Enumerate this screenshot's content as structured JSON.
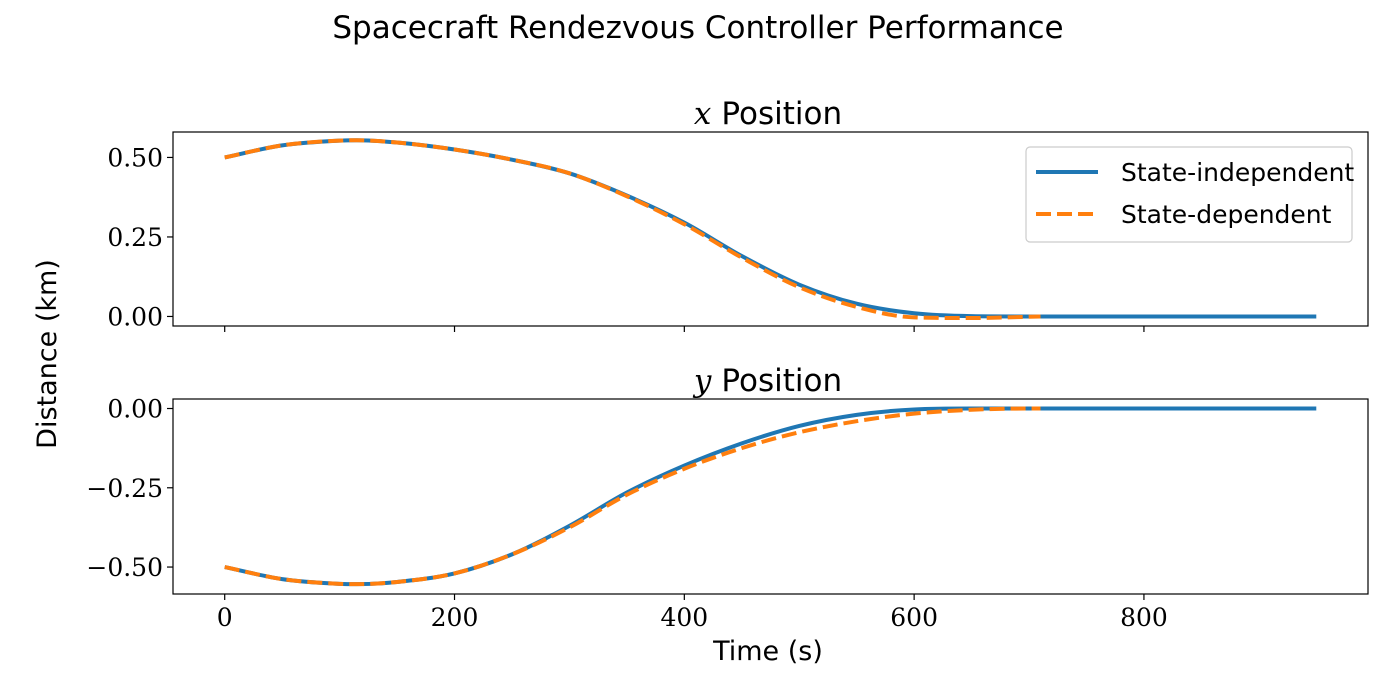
{
  "figure": {
    "suptitle": "Spacecraft Rendezvous Controller Performance",
    "ylabel": "Distance (km)",
    "xlabel": "Time (s)"
  },
  "legend": {
    "placement": "upper-right of top panel",
    "entries": [
      "State-independent",
      "State-dependent"
    ]
  },
  "colors": {
    "state_independent": "#1f77b4",
    "state_dependent": "#ff7f0e"
  },
  "chart_data": [
    {
      "type": "line",
      "title_var": "x",
      "title_text": "Position",
      "xlim": [
        -45,
        995
      ],
      "ylim": [
        -0.03,
        0.58
      ],
      "xticks": [
        0,
        200,
        400,
        600,
        800
      ],
      "yticks": [
        0.0,
        0.25,
        0.5
      ],
      "ytick_labels": [
        "0.00",
        "0.25",
        "0.50"
      ],
      "x_tick_labels_visible": false,
      "grid": false,
      "series": [
        {
          "name": "State-independent",
          "style": "solid",
          "x": [
            0,
            50,
            100,
            115,
            150,
            200,
            250,
            300,
            350,
            400,
            450,
            500,
            550,
            600,
            650,
            700,
            950
          ],
          "y": [
            0.5,
            0.538,
            0.553,
            0.554,
            0.547,
            0.525,
            0.493,
            0.45,
            0.38,
            0.295,
            0.19,
            0.1,
            0.04,
            0.01,
            0.001,
            0.0,
            0.0
          ]
        },
        {
          "name": "State-dependent",
          "style": "dashed",
          "x": [
            0,
            50,
            100,
            115,
            150,
            200,
            250,
            300,
            350,
            400,
            450,
            500,
            550,
            600,
            650,
            700,
            710
          ],
          "y": [
            0.5,
            0.538,
            0.553,
            0.554,
            0.547,
            0.525,
            0.493,
            0.45,
            0.378,
            0.29,
            0.185,
            0.092,
            0.03,
            -0.003,
            -0.005,
            -0.001,
            0.0
          ]
        }
      ]
    },
    {
      "type": "line",
      "title_var": "y",
      "title_text": "Position",
      "xlim": [
        -45,
        995
      ],
      "ylim": [
        -0.585,
        0.03
      ],
      "xticks": [
        0,
        200,
        400,
        600,
        800
      ],
      "xtick_labels": [
        "0",
        "200",
        "400",
        "600",
        "800"
      ],
      "yticks": [
        -0.5,
        -0.25,
        0.0
      ],
      "ytick_labels": [
        "−0.50",
        "−0.25",
        "0.00"
      ],
      "grid": false,
      "series": [
        {
          "name": "State-independent",
          "style": "solid",
          "x": [
            0,
            50,
            100,
            115,
            150,
            200,
            250,
            300,
            350,
            400,
            450,
            500,
            550,
            600,
            650,
            700,
            950
          ],
          "y": [
            -0.5,
            -0.538,
            -0.553,
            -0.554,
            -0.547,
            -0.52,
            -0.46,
            -0.37,
            -0.265,
            -0.18,
            -0.11,
            -0.055,
            -0.02,
            -0.003,
            0.0,
            0.0,
            0.0
          ]
        },
        {
          "name": "State-dependent",
          "style": "dashed",
          "x": [
            0,
            50,
            100,
            115,
            150,
            200,
            250,
            300,
            350,
            400,
            450,
            500,
            550,
            600,
            650,
            700,
            710
          ],
          "y": [
            -0.5,
            -0.538,
            -0.553,
            -0.554,
            -0.547,
            -0.52,
            -0.46,
            -0.375,
            -0.272,
            -0.19,
            -0.125,
            -0.075,
            -0.04,
            -0.016,
            -0.004,
            0.0,
            0.0
          ]
        }
      ]
    }
  ]
}
